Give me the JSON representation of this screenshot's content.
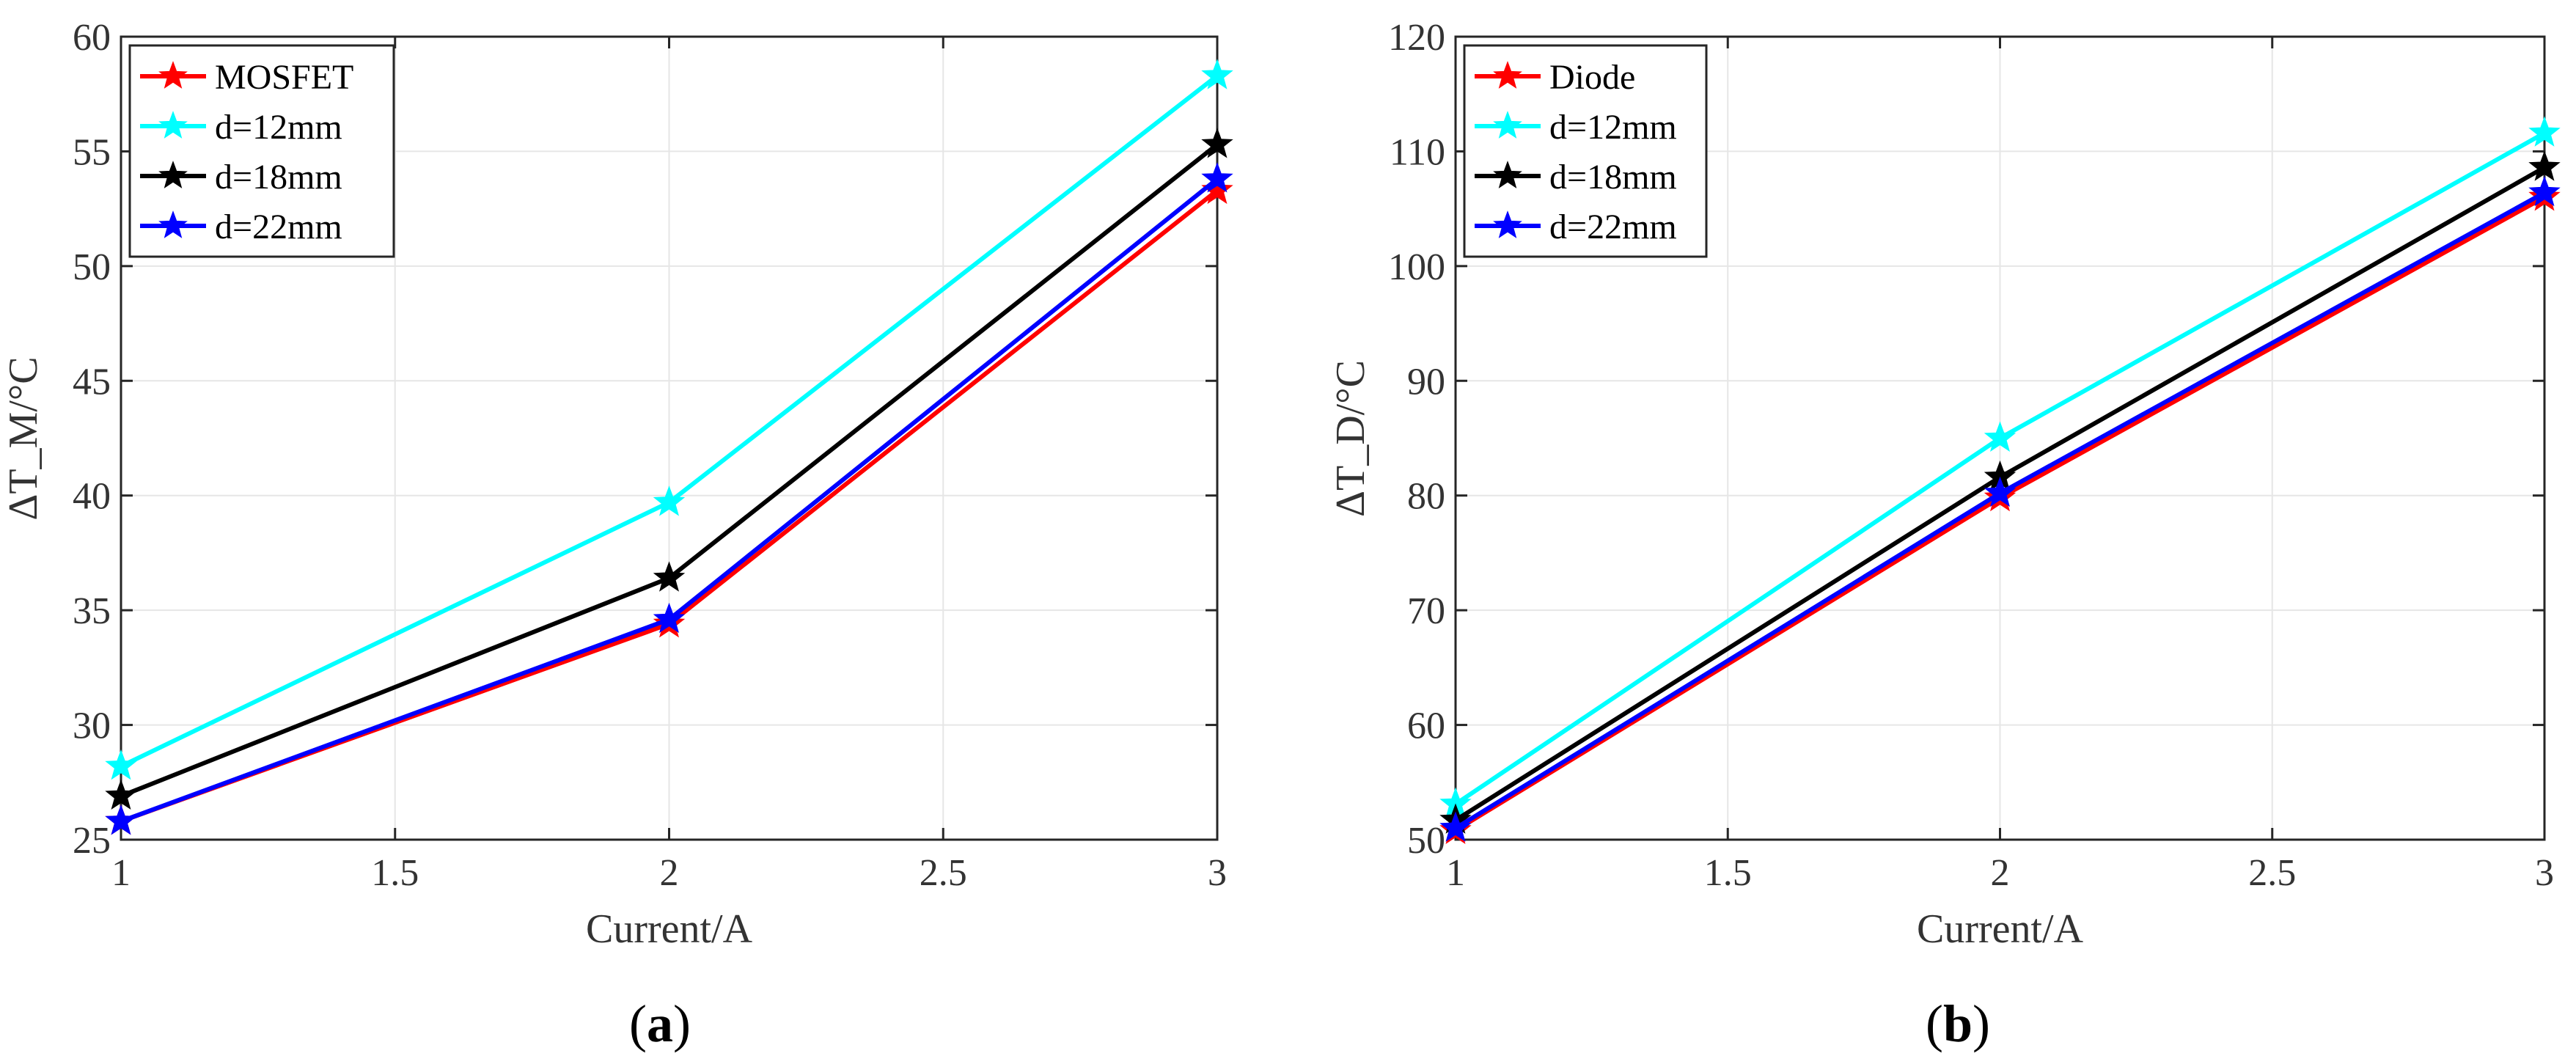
{
  "chart_data": [
    {
      "id": "a",
      "type": "line",
      "caption_prefix": "(",
      "caption_letter": "a",
      "caption_suffix": ")",
      "xlabel": "Current/A",
      "ylabel": "ΔT_M/°C",
      "xlim": [
        1,
        3
      ],
      "ylim": [
        25,
        60
      ],
      "xticks": [
        1,
        1.5,
        2,
        2.5,
        3
      ],
      "xtick_labels": [
        "1",
        "1.5",
        "2",
        "2.5",
        "3"
      ],
      "yticks": [
        25,
        30,
        35,
        40,
        45,
        50,
        55,
        60
      ],
      "ytick_labels": [
        "25",
        "30",
        "35",
        "40",
        "45",
        "50",
        "55",
        "60"
      ],
      "grid": true,
      "legend_position": "top-left",
      "x": [
        1,
        2,
        3
      ],
      "series": [
        {
          "name": "MOSFET",
          "color": "#ff0000",
          "values": [
            25.8,
            34.4,
            53.3
          ]
        },
        {
          "name": "d=12mm",
          "color": "#00ffff",
          "values": [
            28.2,
            39.7,
            58.3
          ]
        },
        {
          "name": "d=18mm",
          "color": "#000000",
          "values": [
            26.9,
            36.4,
            55.3
          ]
        },
        {
          "name": "d=22mm",
          "color": "#0000ff",
          "values": [
            25.8,
            34.6,
            53.8
          ]
        }
      ]
    },
    {
      "id": "b",
      "type": "line",
      "caption_prefix": "(",
      "caption_letter": "b",
      "caption_suffix": ")",
      "xlabel": "Current/A",
      "ylabel": "ΔT_D/°C",
      "xlim": [
        1,
        3
      ],
      "ylim": [
        50,
        120
      ],
      "xticks": [
        1,
        1.5,
        2,
        2.5,
        3
      ],
      "xtick_labels": [
        "1",
        "1.5",
        "2",
        "2.5",
        "3"
      ],
      "yticks": [
        50,
        60,
        70,
        80,
        90,
        100,
        110,
        120
      ],
      "ytick_labels": [
        "50",
        "60",
        "70",
        "80",
        "90",
        "100",
        "110",
        "120"
      ],
      "grid": true,
      "legend_position": "top-left",
      "x": [
        1,
        2,
        3
      ],
      "series": [
        {
          "name": "Diode",
          "color": "#ff0000",
          "values": [
            50.8,
            79.8,
            106.0
          ]
        },
        {
          "name": "d=12mm",
          "color": "#00ffff",
          "values": [
            53.1,
            85.0,
            111.6
          ]
        },
        {
          "name": "d=18mm",
          "color": "#000000",
          "values": [
            51.7,
            81.6,
            108.6
          ]
        },
        {
          "name": "d=22mm",
          "color": "#0000ff",
          "values": [
            51.0,
            80.2,
            106.4
          ]
        }
      ]
    }
  ]
}
